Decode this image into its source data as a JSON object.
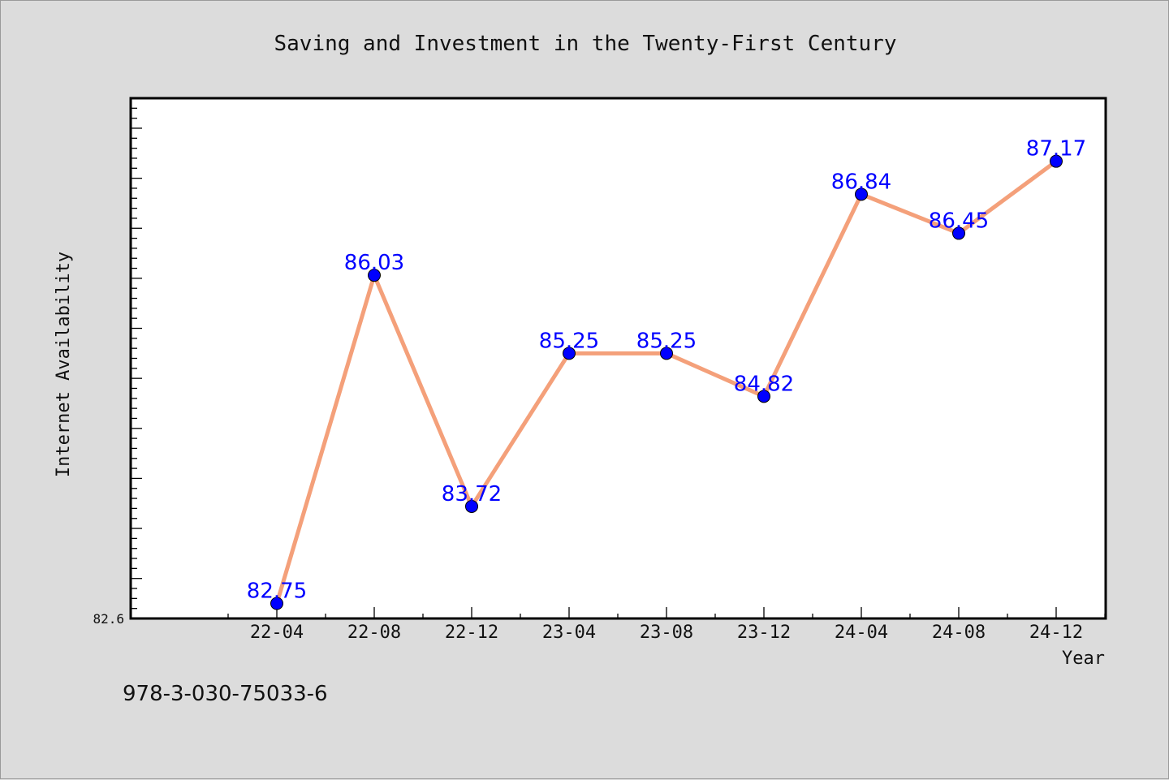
{
  "chart_data": {
    "type": "line",
    "title": "Saving and Investment in the Twenty-First Century",
    "xlabel": "Year",
    "ylabel": "Internet Availability",
    "categories": [
      "22-04",
      "22-08",
      "22-12",
      "23-04",
      "23-08",
      "23-12",
      "24-04",
      "24-08",
      "24-12"
    ],
    "values": [
      82.75,
      86.03,
      83.72,
      85.25,
      85.25,
      84.82,
      86.84,
      86.45,
      87.17
    ],
    "value_labels": [
      "82.75",
      "86.03",
      "83.72",
      "85.25",
      "85.25",
      "84.82",
      "86.84",
      "86.45",
      "87.17"
    ],
    "ymin_label": "82.6",
    "ylim": [
      82.6,
      87.8
    ],
    "grid": false,
    "legend": "none",
    "line_color": "#f4a07a",
    "marker_color": "#0000ff",
    "label_color": "#0000ff"
  },
  "footer": {
    "identifier": "978-3-030-75033-6"
  }
}
